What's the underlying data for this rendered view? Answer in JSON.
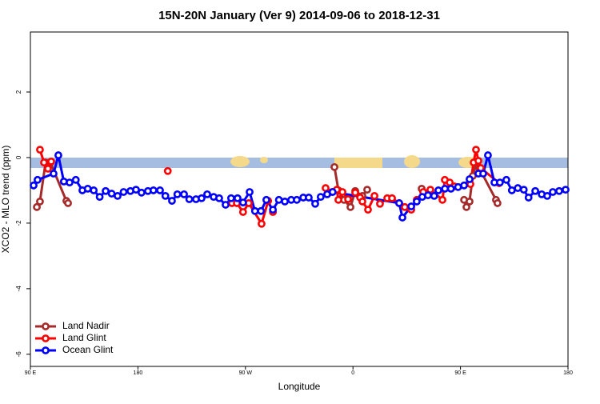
{
  "chart_data": {
    "type": "line",
    "title": "15N-20N January (Ver 9)   2014-09-06 to 2018-12-31",
    "x_label": "Longitude",
    "y_label": "XCO2 - MLO trend (ppm)",
    "xlim": [
      90,
      540
    ],
    "xticks": [
      {
        "value": 90,
        "label": "90 E"
      },
      180,
      {
        "value": 270,
        "label": "90 W"
      },
      {
        "value": 360,
        "label": "0"
      },
      {
        "value": 450,
        "label": "90 E"
      },
      {
        "value": 540,
        "label": "180"
      }
    ],
    "ylim": [
      -6.37,
      3.83
    ],
    "yticks": [
      -6,
      -4,
      -2,
      0,
      2
    ],
    "legend": "bottom-left",
    "series": [
      {
        "name": "Land Nadir",
        "color": "#a52a2a",
        "x": [
          95.4,
          98,
          102.7,
          106.7,
          120.1,
          121.5,
          null,
          344.5,
          347.8,
          352.5,
          357.9,
          361.9,
          367.9,
          371.9,
          null,
          417.5,
          null,
          453,
          455,
          457.6,
          460.3,
          463.7,
          465.7,
          479.7,
          481
        ],
        "values": [
          -1.51,
          -1.34,
          -0.15,
          -0.15,
          -1.32,
          -1.39,
          null,
          -0.29,
          -1.0,
          -1.29,
          -1.51,
          -1.02,
          -1.17,
          -0.98,
          null,
          -0.95,
          null,
          -1.29,
          -1.51,
          -1.34,
          -0.56,
          -0.12,
          -0.32,
          -1.29,
          -1.39
        ]
      },
      {
        "name": "Land Glint",
        "color": "#ff0000",
        "x": [
          98,
          101.4,
          104.7,
          107.4,
          null,
          205,
          null,
          258.7,
          262.8,
          268,
          272.8,
          283.5,
          289,
          293,
          null,
          337.1,
          342.5,
          346.5,
          347.8,
          351.2,
          355.9,
          361.9,
          366,
          367.9,
          372.6,
          378,
          382.6,
          388.7,
          392.7,
          398.7,
          403.4,
          408.8,
          413.4,
          418.8,
          424.8,
          434.9,
          436.9,
          441,
          445,
          458.3,
          461,
          463,
          465,
          467,
          482.4
        ],
        "values": [
          0.24,
          -0.15,
          -0.34,
          -0.12,
          null,
          -0.41,
          null,
          -1.39,
          -1.39,
          -1.66,
          -1.39,
          -2.02,
          -1.32,
          -1.66,
          null,
          -0.93,
          -1.05,
          -0.98,
          -1.29,
          -1.05,
          -1.27,
          -1.07,
          -1.22,
          -1.34,
          -1.59,
          -1.17,
          -1.41,
          -1.24,
          -1.24,
          -1.39,
          -1.51,
          -1.59,
          -1.29,
          -1.05,
          -0.98,
          -1.29,
          -0.68,
          -0.76,
          -0.88,
          -0.81,
          -0.15,
          0.24,
          -0.1,
          -0.32,
          -0.78
        ]
      },
      {
        "name": "Ocean Glint",
        "color": "#0000ff",
        "x": [
          92.7,
          96,
          109.4,
          113.4,
          118,
          122.8,
          128,
          133.5,
          138,
          143,
          148,
          153,
          158,
          163,
          168,
          173.7,
          178.4,
          183,
          188.4,
          193,
          198.5,
          203,
          208.5,
          213,
          218.6,
          223,
          228.6,
          233.3,
          238,
          243.4,
          248,
          253.4,
          258,
          263.4,
          268,
          273.5,
          278,
          283,
          287.5,
          293,
          298,
          303,
          308.3,
          313,
          318.4,
          323,
          328.4,
          333,
          338.4,
          343,
          398.7,
          401.4,
          408.8,
          413.4,
          418,
          422.8,
          428,
          431.5,
          437,
          442,
          448,
          453,
          457.6,
          465,
          469,
          473,
          478.4,
          483,
          488.4,
          493,
          498,
          503,
          507,
          512.6,
          518,
          522.6,
          527.3,
          532.6,
          538
        ],
        "values": [
          -0.85,
          -0.68,
          -0.49,
          0.07,
          -0.73,
          -0.76,
          -0.68,
          -1.0,
          -0.95,
          -1.0,
          -1.2,
          -1.02,
          -1.1,
          -1.17,
          -1.05,
          -1.02,
          -0.98,
          -1.07,
          -1.02,
          -1.0,
          -1.0,
          -1.17,
          -1.32,
          -1.12,
          -1.12,
          -1.27,
          -1.27,
          -1.24,
          -1.12,
          -1.2,
          -1.24,
          -1.44,
          -1.24,
          -1.24,
          -1.37,
          -1.05,
          -1.63,
          -1.63,
          -1.29,
          -1.59,
          -1.29,
          -1.34,
          -1.29,
          -1.29,
          -1.22,
          -1.22,
          -1.41,
          -1.2,
          -1.12,
          -1.05,
          -1.39,
          -1.83,
          -1.49,
          -1.34,
          -1.2,
          -1.15,
          -1.17,
          -1.0,
          -0.95,
          -0.95,
          -0.9,
          -0.85,
          -0.66,
          -0.49,
          -0.49,
          0.07,
          -0.76,
          -0.76,
          -0.68,
          -1.0,
          -0.93,
          -0.98,
          -1.22,
          -1.02,
          -1.12,
          -1.17,
          -1.05,
          -1.02,
          -0.98
        ]
      }
    ]
  }
}
